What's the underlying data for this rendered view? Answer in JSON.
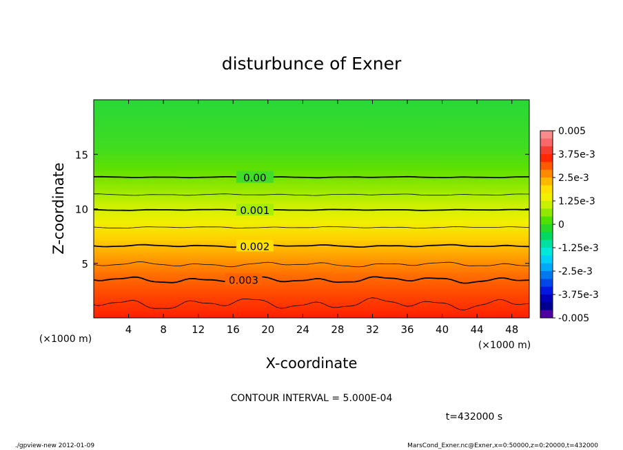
{
  "chart_data": {
    "type": "heatmap",
    "title": "disturbunce of Exner",
    "xlabel": "X-coordinate",
    "ylabel": "Z-coordinate",
    "x_unit_label": "(×1000 m)",
    "y_unit_label": "(×1000 m)",
    "xlim": [
      0,
      50
    ],
    "ylim": [
      0,
      20
    ],
    "x_ticks": [
      4,
      8,
      12,
      16,
      20,
      24,
      28,
      32,
      36,
      40,
      44,
      48
    ],
    "y_ticks": [
      5,
      10,
      15
    ],
    "value_range": [
      -0.005,
      0.005
    ],
    "colorbar": {
      "tick_labels": [
        "0.005",
        "3.75e-3",
        "2.5e-3",
        "1.25e-3",
        "0",
        "-1.25e-3",
        "-2.5e-3",
        "-3.75e-3",
        "-0.005"
      ],
      "tick_values": [
        0.005,
        0.00375,
        0.0025,
        0.00125,
        0,
        -0.00125,
        -0.0025,
        -0.00375,
        -0.005
      ],
      "colors_top_to_bottom": [
        "#f88c8c",
        "#f86a6a",
        "#f43e32",
        "#ff2800",
        "#ff5a00",
        "#ff8a00",
        "#ffb800",
        "#ffe000",
        "#f0f000",
        "#c8f000",
        "#90e800",
        "#50e000",
        "#28d828",
        "#00d860",
        "#00e0a0",
        "#00e8d8",
        "#00d0f8",
        "#00a8f8",
        "#0078f0",
        "#0048e8",
        "#0018e0",
        "#0000b8",
        "#000090",
        "#5000a0"
      ]
    },
    "contour_levels_labeled": [
      {
        "label": "0.00",
        "value": 0.0,
        "z": 12.9
      },
      {
        "label": "0.001",
        "value": 0.001,
        "z": 9.9
      },
      {
        "label": "0.002",
        "value": 0.002,
        "z": 6.6
      },
      {
        "label": "0.003",
        "value": 0.003,
        "z": 3.5
      }
    ],
    "contour_levels_unlabeled": [
      {
        "value": 0.0005,
        "z": 11.3
      },
      {
        "value": 0.0015,
        "z": 8.3
      },
      {
        "value": 0.0025,
        "z": 4.9
      },
      {
        "value": 0.0035,
        "z": 1.3
      }
    ],
    "contour_interval_text": "CONTOUR INTERVAL = 5.000E-04",
    "time_text": "t=432000 s"
  },
  "footer": {
    "left": "./gpview-new   2012-01-09",
    "right": "MarsCond_Exner.nc@Exner,x=0:50000,z=0:20000,t=432000"
  }
}
